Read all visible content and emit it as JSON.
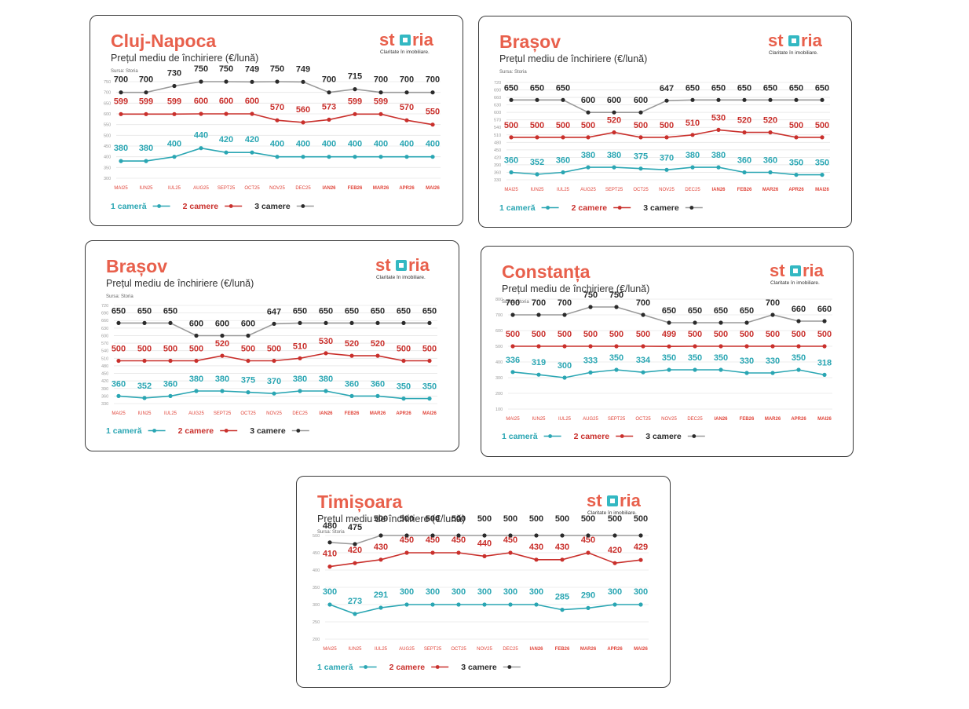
{
  "colors": {
    "title": "#e8604c",
    "one_room": "#2aa6b3",
    "two_rooms": "#c9302c",
    "three_rooms": "#2b2b2b",
    "grid": "#e6e6e6",
    "axis_label": "#9a9a9a",
    "month_red": "#e0453a",
    "logo_box": "#33b8c2"
  },
  "common": {
    "subtitle": "Prețul mediu de închiriere (€/lună)",
    "source": "Sursa: Storia",
    "logo_left": "st",
    "logo_right": "ria",
    "logo_tagline": "Claritate în imobiliare.",
    "months": [
      "MAI25",
      "IUN25",
      "IUL25",
      "AUG25",
      "SEPT25",
      "OCT25",
      "NOV25",
      "DEC25",
      "IAN26",
      "FEB26",
      "MAR26",
      "APR26",
      "MAI26"
    ],
    "legend": [
      "1 cameră",
      "2 camere",
      "3 camere"
    ]
  },
  "chart_data": [
    {
      "type": "line",
      "title": "Cluj-Napoca",
      "subtitle": "Prețul mediu de închiriere (€/lună)",
      "categories": [
        "MAI25",
        "IUN25",
        "IUL25",
        "AUG25",
        "SEPT25",
        "OCT25",
        "NOV25",
        "DEC25",
        "IAN26",
        "FEB26",
        "MAR26",
        "APR26",
        "MAI26"
      ],
      "yticks": [
        300,
        350,
        400,
        450,
        500,
        550,
        600,
        650,
        700,
        750
      ],
      "ylim": [
        300,
        750
      ],
      "grid": true,
      "legend_position": "bottom-left",
      "series": [
        {
          "name": "1 cameră",
          "values": [
            380,
            380,
            400,
            440,
            420,
            420,
            400,
            400,
            400,
            400,
            400,
            400,
            400
          ]
        },
        {
          "name": "2 camere",
          "values": [
            599,
            599,
            599,
            600,
            600,
            600,
            570,
            560,
            573,
            599,
            599,
            570,
            550
          ]
        },
        {
          "name": "3 camere",
          "values": [
            700,
            700,
            730,
            750,
            750,
            749,
            750,
            749,
            700,
            715,
            700,
            700,
            700
          ]
        }
      ]
    },
    {
      "type": "line",
      "title": "Brașov",
      "subtitle": "Prețul mediu de închiriere (€/lună)",
      "categories": [
        "MAI25",
        "IUN25",
        "IUL25",
        "AUG25",
        "SEPT25",
        "OCT25",
        "NOV25",
        "DEC25",
        "IAN26",
        "FEB26",
        "MAR26",
        "APR26",
        "MAI26"
      ],
      "yticks": [
        330,
        360,
        390,
        420,
        450,
        480,
        510,
        540,
        570,
        600,
        630,
        660,
        690,
        720
      ],
      "ylim": [
        330,
        720
      ],
      "grid": true,
      "legend_position": "bottom-left",
      "series": [
        {
          "name": "1 cameră",
          "values": [
            360,
            352,
            360,
            380,
            380,
            375,
            370,
            380,
            380,
            360,
            360,
            350,
            350
          ]
        },
        {
          "name": "2 camere",
          "values": [
            500,
            500,
            500,
            500,
            520,
            500,
            500,
            510,
            530,
            520,
            520,
            500,
            500
          ]
        },
        {
          "name": "3 camere",
          "values": [
            650,
            650,
            650,
            600,
            600,
            600,
            647,
            650,
            650,
            650,
            650,
            650,
            650
          ]
        }
      ]
    },
    {
      "type": "line",
      "title": "Brașov",
      "subtitle": "Prețul mediu de închiriere (€/lună)",
      "categories": [
        "MAI25",
        "IUN25",
        "IUL25",
        "AUG25",
        "SEPT25",
        "OCT25",
        "NOV25",
        "DEC25",
        "IAN26",
        "FEB26",
        "MAR26",
        "APR26",
        "MAI26"
      ],
      "yticks": [
        330,
        360,
        390,
        420,
        450,
        480,
        510,
        540,
        570,
        600,
        630,
        660,
        690,
        720
      ],
      "ylim": [
        330,
        720
      ],
      "grid": true,
      "legend_position": "bottom-left",
      "series": [
        {
          "name": "1 cameră",
          "values": [
            360,
            352,
            360,
            380,
            380,
            375,
            370,
            380,
            380,
            360,
            360,
            350,
            350
          ]
        },
        {
          "name": "2 camere",
          "values": [
            500,
            500,
            500,
            500,
            520,
            500,
            500,
            510,
            530,
            520,
            520,
            500,
            500
          ]
        },
        {
          "name": "3 camere",
          "values": [
            650,
            650,
            650,
            600,
            600,
            600,
            647,
            650,
            650,
            650,
            650,
            650,
            650
          ]
        }
      ]
    },
    {
      "type": "line",
      "title": "Constanța",
      "subtitle": "Prețul mediu de închiriere (€/lună)",
      "categories": [
        "MAI25",
        "IUN25",
        "IUL25",
        "AUG25",
        "SEPT25",
        "OCT25",
        "NOV25",
        "DEC25",
        "IAN26",
        "FEB26",
        "MAR26",
        "APR26",
        "MAI26"
      ],
      "yticks": [
        100,
        200,
        300,
        400,
        500,
        600,
        700,
        800
      ],
      "ylim": [
        100,
        800
      ],
      "grid": true,
      "legend_position": "bottom-left",
      "series": [
        {
          "name": "1 cameră",
          "values": [
            336,
            319,
            300,
            333,
            350,
            334,
            350,
            350,
            350,
            330,
            330,
            350,
            318
          ]
        },
        {
          "name": "2 camere",
          "values": [
            500,
            500,
            500,
            500,
            500,
            500,
            499,
            500,
            500,
            500,
            500,
            500,
            500
          ]
        },
        {
          "name": "3 camere",
          "values": [
            700,
            700,
            700,
            750,
            750,
            700,
            650,
            650,
            650,
            650,
            700,
            660,
            660
          ]
        }
      ]
    },
    {
      "type": "line",
      "title": "Timișoara",
      "subtitle": "Prețul mediu de închiriere (€/lună)",
      "categories": [
        "MAI25",
        "IUN25",
        "IUL25",
        "AUG25",
        "SEPT25",
        "OCT25",
        "NOV25",
        "DEC25",
        "IAN26",
        "FEB26",
        "MAR26",
        "APR26",
        "MAI26"
      ],
      "yticks": [
        200,
        250,
        300,
        350,
        400,
        450,
        500
      ],
      "ylim": [
        200,
        500
      ],
      "grid": true,
      "legend_position": "bottom-left",
      "series": [
        {
          "name": "1 cameră",
          "values": [
            300,
            273,
            291,
            300,
            300,
            300,
            300,
            300,
            300,
            285,
            290,
            300,
            300
          ]
        },
        {
          "name": "2 camere",
          "values": [
            410,
            420,
            430,
            450,
            450,
            450,
            440,
            450,
            430,
            430,
            450,
            420,
            429
          ]
        },
        {
          "name": "3 camere",
          "values": [
            480,
            475,
            500,
            500,
            500,
            500,
            500,
            500,
            500,
            500,
            500,
            500,
            500
          ]
        }
      ]
    }
  ]
}
